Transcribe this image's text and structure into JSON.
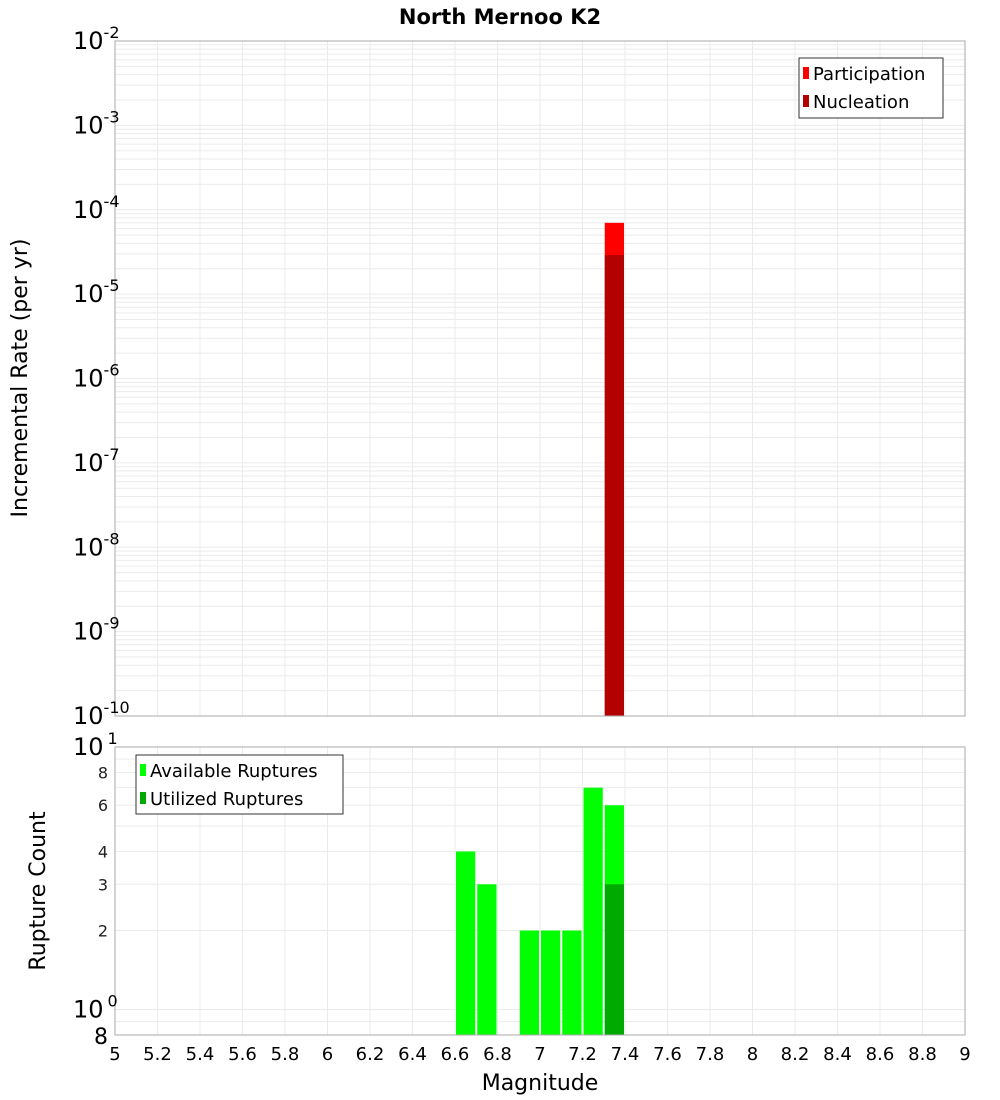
{
  "title": "North Mernoo K2",
  "colors": {
    "participation": "#FF0000",
    "nucleation": "#B30000",
    "available": "#00FF00",
    "utilized": "#00AA00",
    "grid": "#EBEBEB",
    "frame": "#AAAAAA"
  },
  "chart_data": [
    {
      "type": "bar",
      "title": "North Mernoo K2",
      "xlabel": "Magnitude",
      "ylabel": "Incremental Rate (per yr)",
      "yscale": "log",
      "ylim": [
        1e-10,
        0.01
      ],
      "xlim": [
        5,
        9
      ],
      "y_tick_labels": [
        "10^-2",
        "10^-3",
        "10^-4",
        "10^-5",
        "10^-6",
        "10^-7",
        "10^-8",
        "10^-9",
        "10^-10"
      ],
      "legend": [
        "Participation",
        "Nucleation"
      ],
      "legend_position": "upper right",
      "grid": true,
      "bin_width": 0.1,
      "series": [
        {
          "name": "Participation",
          "x": [
            7.35
          ],
          "values": [
            7e-05
          ]
        },
        {
          "name": "Nucleation",
          "x": [
            7.35
          ],
          "values": [
            2.9e-05
          ]
        }
      ]
    },
    {
      "type": "bar",
      "title": "",
      "xlabel": "Magnitude",
      "ylabel": "Rupture Count",
      "yscale": "log",
      "ylim": [
        0.8,
        10
      ],
      "xlim": [
        5,
        9
      ],
      "x_tick_labels": [
        "5",
        "5.2",
        "5.4",
        "5.6",
        "5.8",
        "6",
        "6.2",
        "6.4",
        "6.6",
        "6.8",
        "7",
        "7.2",
        "7.4",
        "7.6",
        "7.8",
        "8",
        "8.2",
        "8.4",
        "8.6",
        "8.8",
        "9"
      ],
      "y_tick_labels": [
        "10^1",
        "8",
        "6",
        "4",
        "3",
        "2",
        "10^0",
        "8"
      ],
      "legend": [
        "Available Ruptures",
        "Utilized Ruptures"
      ],
      "legend_position": "upper left",
      "grid": true,
      "bin_width": 0.1,
      "categories": [
        6.65,
        6.75,
        6.95,
        7.05,
        7.15,
        7.25,
        7.35
      ],
      "series": [
        {
          "name": "Available Ruptures",
          "values": [
            4,
            3,
            2,
            2,
            2,
            7,
            6
          ]
        },
        {
          "name": "Utilized Ruptures",
          "values": [
            0,
            0,
            0,
            0,
            0,
            0,
            3
          ]
        }
      ]
    }
  ]
}
